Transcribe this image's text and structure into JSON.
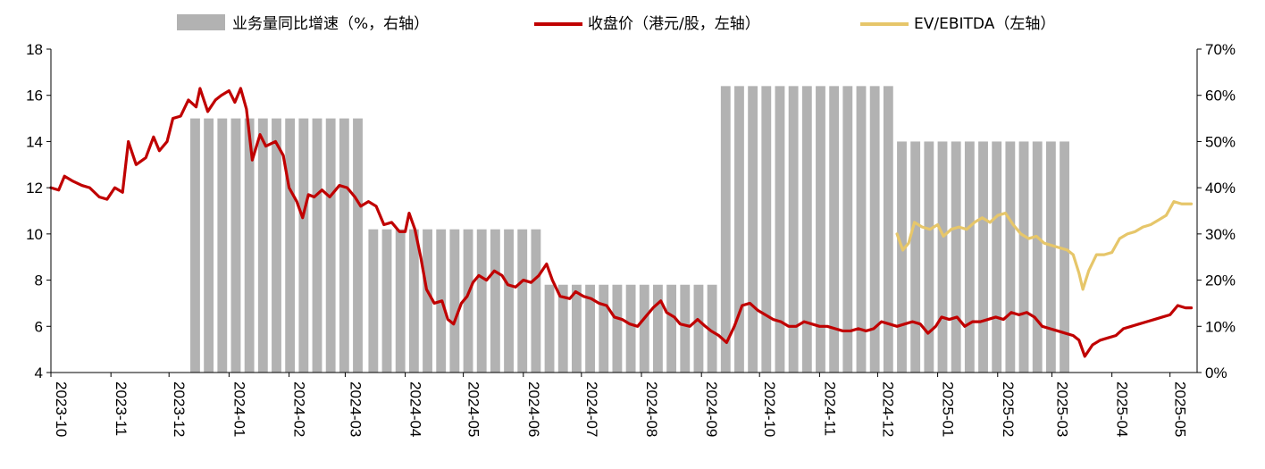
{
  "colors": {
    "bars": "#b2b2b2",
    "close_price": "#c00000",
    "ev_ebitda": "#e6c66a",
    "axis": "#000000"
  },
  "legend": {
    "bars_label": "业务量同比增速（%，右轴）",
    "close_label": "收盘价（港元/股，左轴）",
    "ev_label": "EV/EBITDA（左轴）"
  },
  "chart_data": {
    "type": "bar+line",
    "title": "",
    "left_axis": {
      "ylim": [
        4,
        18
      ],
      "ticks": [
        "4",
        "6",
        "8",
        "10",
        "12",
        "14",
        "16",
        "18"
      ]
    },
    "right_axis": {
      "ylim": [
        0,
        70
      ],
      "ticks": [
        "0%",
        "10%",
        "20%",
        "30%",
        "40%",
        "50%",
        "60%",
        "70%"
      ]
    },
    "x_axis": {
      "start": "2023-10",
      "end": "2025-05",
      "tick_labels": [
        "2023-10",
        "2023-11",
        "2023-12",
        "2024-01",
        "2024-02",
        "2024-03",
        "2024-04",
        "2024-05",
        "2024-06",
        "2024-07",
        "2024-08",
        "2024-09",
        "2024-10",
        "2024-11",
        "2024-12",
        "2025-01",
        "2025-02",
        "2025-03",
        "2025-04",
        "2025-05"
      ]
    },
    "legend_position": "top",
    "series": [
      {
        "name": "业务量同比增速（%，右轴）",
        "type": "bar",
        "axis": "right",
        "segments": [
          {
            "from": "2023-12-12",
            "to": "2024-03-10",
            "value": 55
          },
          {
            "from": "2024-03-13",
            "to": "2024-06-09",
            "value": 31
          },
          {
            "from": "2024-06-12",
            "to": "2024-09-08",
            "value": 19
          },
          {
            "from": "2024-09-11",
            "to": "2024-12-08",
            "value": 62
          },
          {
            "from": "2024-12-11",
            "to": "2025-03-09",
            "value": 50
          }
        ]
      },
      {
        "name": "收盘价（港元/股，左轴）",
        "type": "line",
        "axis": "left",
        "points": [
          [
            "2023-10-01",
            12.0
          ],
          [
            "2023-10-05",
            11.9
          ],
          [
            "2023-10-08",
            12.5
          ],
          [
            "2023-10-12",
            12.3
          ],
          [
            "2023-10-17",
            12.1
          ],
          [
            "2023-10-21",
            12.0
          ],
          [
            "2023-10-26",
            11.6
          ],
          [
            "2023-10-30",
            11.5
          ],
          [
            "2023-11-03",
            12.0
          ],
          [
            "2023-11-07",
            11.8
          ],
          [
            "2023-11-10",
            14.0
          ],
          [
            "2023-11-14",
            13.0
          ],
          [
            "2023-11-19",
            13.3
          ],
          [
            "2023-11-23",
            14.2
          ],
          [
            "2023-11-26",
            13.6
          ],
          [
            "2023-11-30",
            14.0
          ],
          [
            "2023-12-03",
            15.0
          ],
          [
            "2023-12-07",
            15.1
          ],
          [
            "2023-12-11",
            15.8
          ],
          [
            "2023-12-15",
            15.5
          ],
          [
            "2023-12-17",
            16.3
          ],
          [
            "2023-12-21",
            15.3
          ],
          [
            "2023-12-25",
            15.8
          ],
          [
            "2023-12-28",
            16.0
          ],
          [
            "2024-01-01",
            16.2
          ],
          [
            "2024-01-04",
            15.7
          ],
          [
            "2024-01-07",
            16.3
          ],
          [
            "2024-01-10",
            15.4
          ],
          [
            "2024-01-13",
            13.2
          ],
          [
            "2024-01-17",
            14.3
          ],
          [
            "2024-01-20",
            13.8
          ],
          [
            "2024-01-25",
            14.0
          ],
          [
            "2024-01-29",
            13.4
          ],
          [
            "2024-02-01",
            12.0
          ],
          [
            "2024-02-05",
            11.4
          ],
          [
            "2024-02-08",
            10.7
          ],
          [
            "2024-02-11",
            11.7
          ],
          [
            "2024-02-14",
            11.6
          ],
          [
            "2024-02-18",
            11.9
          ],
          [
            "2024-02-22",
            11.6
          ],
          [
            "2024-02-27",
            12.1
          ],
          [
            "2024-03-02",
            12.0
          ],
          [
            "2024-03-06",
            11.6
          ],
          [
            "2024-03-09",
            11.2
          ],
          [
            "2024-03-13",
            11.4
          ],
          [
            "2024-03-17",
            11.2
          ],
          [
            "2024-03-21",
            10.4
          ],
          [
            "2024-03-25",
            10.5
          ],
          [
            "2024-03-29",
            10.1
          ],
          [
            "2024-04-01",
            10.1
          ],
          [
            "2024-04-03",
            10.9
          ],
          [
            "2024-04-06",
            10.2
          ],
          [
            "2024-04-09",
            9.0
          ],
          [
            "2024-04-12",
            7.6
          ],
          [
            "2024-04-16",
            7.0
          ],
          [
            "2024-04-20",
            7.1
          ],
          [
            "2024-04-23",
            6.3
          ],
          [
            "2024-04-26",
            6.1
          ],
          [
            "2024-04-30",
            7.0
          ],
          [
            "2024-05-03",
            7.3
          ],
          [
            "2024-05-06",
            7.9
          ],
          [
            "2024-05-09",
            8.2
          ],
          [
            "2024-05-13",
            8.0
          ],
          [
            "2024-05-17",
            8.4
          ],
          [
            "2024-05-21",
            8.2
          ],
          [
            "2024-05-24",
            7.8
          ],
          [
            "2024-05-28",
            7.7
          ],
          [
            "2024-06-01",
            8.0
          ],
          [
            "2024-06-05",
            7.9
          ],
          [
            "2024-06-09",
            8.2
          ],
          [
            "2024-06-13",
            8.7
          ],
          [
            "2024-06-16",
            8.0
          ],
          [
            "2024-06-20",
            7.3
          ],
          [
            "2024-06-25",
            7.2
          ],
          [
            "2024-06-28",
            7.5
          ],
          [
            "2024-07-02",
            7.3
          ],
          [
            "2024-07-06",
            7.2
          ],
          [
            "2024-07-10",
            7.0
          ],
          [
            "2024-07-14",
            6.9
          ],
          [
            "2024-07-18",
            6.4
          ],
          [
            "2024-07-22",
            6.3
          ],
          [
            "2024-07-26",
            6.1
          ],
          [
            "2024-07-30",
            6.0
          ],
          [
            "2024-08-03",
            6.4
          ],
          [
            "2024-08-07",
            6.8
          ],
          [
            "2024-08-11",
            7.1
          ],
          [
            "2024-08-14",
            6.6
          ],
          [
            "2024-08-18",
            6.4
          ],
          [
            "2024-08-21",
            6.1
          ],
          [
            "2024-08-26",
            6.0
          ],
          [
            "2024-08-30",
            6.3
          ],
          [
            "2024-09-03",
            6.0
          ],
          [
            "2024-09-06",
            5.8
          ],
          [
            "2024-09-10",
            5.6
          ],
          [
            "2024-09-14",
            5.3
          ],
          [
            "2024-09-18",
            6.0
          ],
          [
            "2024-09-22",
            6.9
          ],
          [
            "2024-09-26",
            7.0
          ],
          [
            "2024-09-30",
            6.7
          ],
          [
            "2024-10-04",
            6.5
          ],
          [
            "2024-10-08",
            6.3
          ],
          [
            "2024-10-12",
            6.2
          ],
          [
            "2024-10-16",
            6.0
          ],
          [
            "2024-10-20",
            6.0
          ],
          [
            "2024-10-24",
            6.2
          ],
          [
            "2024-10-28",
            6.1
          ],
          [
            "2024-11-01",
            6.0
          ],
          [
            "2024-11-05",
            6.0
          ],
          [
            "2024-11-09",
            5.9
          ],
          [
            "2024-11-13",
            5.8
          ],
          [
            "2024-11-17",
            5.8
          ],
          [
            "2024-11-21",
            5.9
          ],
          [
            "2024-11-25",
            5.8
          ],
          [
            "2024-11-29",
            5.9
          ],
          [
            "2024-12-03",
            6.2
          ],
          [
            "2024-12-07",
            6.1
          ],
          [
            "2024-12-11",
            6.0
          ],
          [
            "2024-12-15",
            6.1
          ],
          [
            "2024-12-19",
            6.2
          ],
          [
            "2024-12-23",
            6.1
          ],
          [
            "2024-12-27",
            5.7
          ],
          [
            "2024-12-31",
            6.0
          ],
          [
            "2025-01-03",
            6.4
          ],
          [
            "2025-01-07",
            6.3
          ],
          [
            "2025-01-11",
            6.4
          ],
          [
            "2025-01-15",
            6.0
          ],
          [
            "2025-01-19",
            6.2
          ],
          [
            "2025-01-23",
            6.2
          ],
          [
            "2025-01-27",
            6.3
          ],
          [
            "2025-01-31",
            6.4
          ],
          [
            "2025-02-04",
            6.3
          ],
          [
            "2025-02-08",
            6.6
          ],
          [
            "2025-02-12",
            6.5
          ],
          [
            "2025-02-16",
            6.6
          ],
          [
            "2025-02-20",
            6.4
          ],
          [
            "2025-02-24",
            6.0
          ],
          [
            "2025-02-28",
            5.9
          ],
          [
            "2025-03-04",
            5.8
          ],
          [
            "2025-03-08",
            5.7
          ],
          [
            "2025-03-12",
            5.6
          ],
          [
            "2025-03-15",
            5.4
          ],
          [
            "2025-03-18",
            4.7
          ],
          [
            "2025-03-22",
            5.2
          ],
          [
            "2025-03-26",
            5.4
          ],
          [
            "2025-03-30",
            5.5
          ],
          [
            "2025-04-03",
            5.6
          ],
          [
            "2025-04-07",
            5.9
          ],
          [
            "2025-04-11",
            6.0
          ],
          [
            "2025-04-15",
            6.1
          ],
          [
            "2025-04-19",
            6.2
          ],
          [
            "2025-04-23",
            6.3
          ],
          [
            "2025-04-27",
            6.4
          ],
          [
            "2025-05-01",
            6.5
          ],
          [
            "2025-05-05",
            6.9
          ],
          [
            "2025-05-09",
            6.8
          ],
          [
            "2025-05-12",
            6.8
          ]
        ]
      },
      {
        "name": "EV/EBITDA（左轴）",
        "type": "line",
        "axis": "left",
        "points": [
          [
            "2024-12-11",
            10.0
          ],
          [
            "2024-12-14",
            9.3
          ],
          [
            "2024-12-17",
            9.6
          ],
          [
            "2024-12-20",
            10.5
          ],
          [
            "2024-12-24",
            10.3
          ],
          [
            "2024-12-28",
            10.2
          ],
          [
            "2025-01-01",
            10.4
          ],
          [
            "2025-01-04",
            9.9
          ],
          [
            "2025-01-08",
            10.2
          ],
          [
            "2025-01-12",
            10.3
          ],
          [
            "2025-01-16",
            10.2
          ],
          [
            "2025-01-20",
            10.5
          ],
          [
            "2025-01-24",
            10.7
          ],
          [
            "2025-01-28",
            10.5
          ],
          [
            "2025-02-01",
            10.8
          ],
          [
            "2025-02-05",
            10.9
          ],
          [
            "2025-02-09",
            10.4
          ],
          [
            "2025-02-13",
            10.0
          ],
          [
            "2025-02-17",
            9.8
          ],
          [
            "2025-02-21",
            9.9
          ],
          [
            "2025-02-25",
            9.6
          ],
          [
            "2025-03-01",
            9.5
          ],
          [
            "2025-03-05",
            9.4
          ],
          [
            "2025-03-09",
            9.3
          ],
          [
            "2025-03-12",
            9.1
          ],
          [
            "2025-03-15",
            8.3
          ],
          [
            "2025-03-17",
            7.6
          ],
          [
            "2025-03-20",
            8.4
          ],
          [
            "2025-03-24",
            9.1
          ],
          [
            "2025-03-28",
            9.1
          ],
          [
            "2025-04-01",
            9.2
          ],
          [
            "2025-04-05",
            9.8
          ],
          [
            "2025-04-09",
            10.0
          ],
          [
            "2025-04-13",
            10.1
          ],
          [
            "2025-04-17",
            10.3
          ],
          [
            "2025-04-21",
            10.4
          ],
          [
            "2025-04-25",
            10.6
          ],
          [
            "2025-04-29",
            10.8
          ],
          [
            "2025-05-03",
            11.4
          ],
          [
            "2025-05-07",
            11.3
          ],
          [
            "2025-05-12",
            11.3
          ]
        ]
      }
    ]
  }
}
